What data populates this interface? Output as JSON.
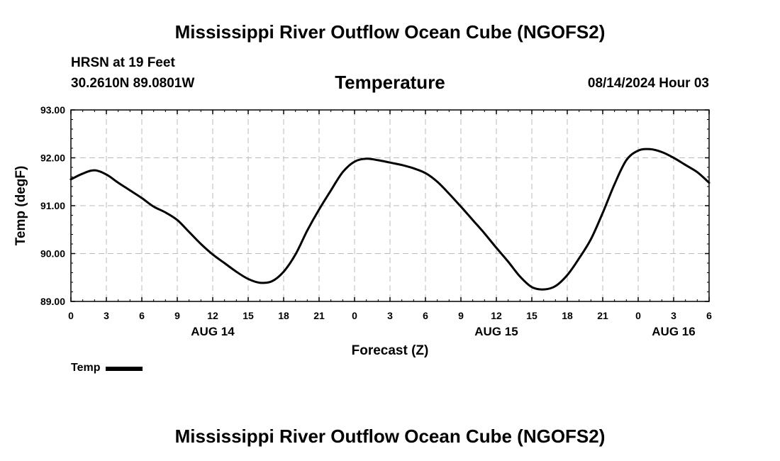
{
  "header": {
    "main_title": "Mississippi River Outflow Ocean Cube (NGOFS2)",
    "station": "HRSN at 19 Feet",
    "coords": "30.2610N  89.0801W",
    "subtitle": "Temperature",
    "datetime": "08/14/2024 Hour 03"
  },
  "footer": {
    "main_title": "Mississippi River Outflow Ocean Cube (NGOFS2)"
  },
  "chart_data": {
    "type": "line",
    "title": "Temperature",
    "xlabel": "Forecast (Z)",
    "ylabel": "Temp (degF)",
    "xlim": [
      0,
      54
    ],
    "ylim": [
      89.0,
      93.0
    ],
    "grid": true,
    "x_ticks": [
      0,
      3,
      6,
      9,
      12,
      15,
      18,
      21,
      24,
      27,
      30,
      33,
      36,
      39,
      42,
      45,
      48,
      51,
      54
    ],
    "x_tick_labels": [
      "0",
      "3",
      "6",
      "9",
      "12",
      "15",
      "18",
      "21",
      "0",
      "3",
      "6",
      "9",
      "12",
      "15",
      "18",
      "21",
      "0",
      "3",
      "6"
    ],
    "date_labels": [
      {
        "x": 12,
        "label": "AUG 14"
      },
      {
        "x": 36,
        "label": "AUG 15"
      },
      {
        "x": 51,
        "label": "AUG 16"
      }
    ],
    "y_ticks": [
      89.0,
      90.0,
      91.0,
      92.0,
      93.0
    ],
    "y_tick_labels": [
      "89.00",
      "90.00",
      "91.00",
      "92.00",
      "93.00"
    ],
    "series": [
      {
        "name": "Temp",
        "color": "#000000",
        "x": [
          0,
          1,
          2,
          3,
          4,
          5,
          6,
          7,
          8,
          9,
          10,
          11,
          12,
          13,
          14,
          15,
          16,
          17,
          18,
          19,
          20,
          21,
          22,
          23,
          24,
          25,
          26,
          27,
          28,
          29,
          30,
          31,
          32,
          33,
          34,
          35,
          36,
          37,
          38,
          39,
          40,
          41,
          42,
          43,
          44,
          45,
          46,
          47,
          48,
          49,
          50,
          51,
          52,
          53,
          54
        ],
        "values": [
          91.55,
          91.67,
          91.74,
          91.65,
          91.48,
          91.32,
          91.16,
          90.98,
          90.86,
          90.7,
          90.45,
          90.2,
          89.98,
          89.8,
          89.62,
          89.47,
          89.39,
          89.42,
          89.62,
          89.98,
          90.48,
          90.92,
          91.32,
          91.7,
          91.92,
          91.98,
          91.95,
          91.9,
          91.85,
          91.78,
          91.68,
          91.5,
          91.25,
          90.98,
          90.7,
          90.42,
          90.12,
          89.83,
          89.52,
          89.3,
          89.25,
          89.32,
          89.55,
          89.9,
          90.3,
          90.85,
          91.45,
          91.95,
          92.15,
          92.18,
          92.12,
          92.0,
          91.85,
          91.7,
          91.48
        ]
      }
    ],
    "legend": {
      "label": "Temp",
      "position": "bottom-left"
    }
  }
}
